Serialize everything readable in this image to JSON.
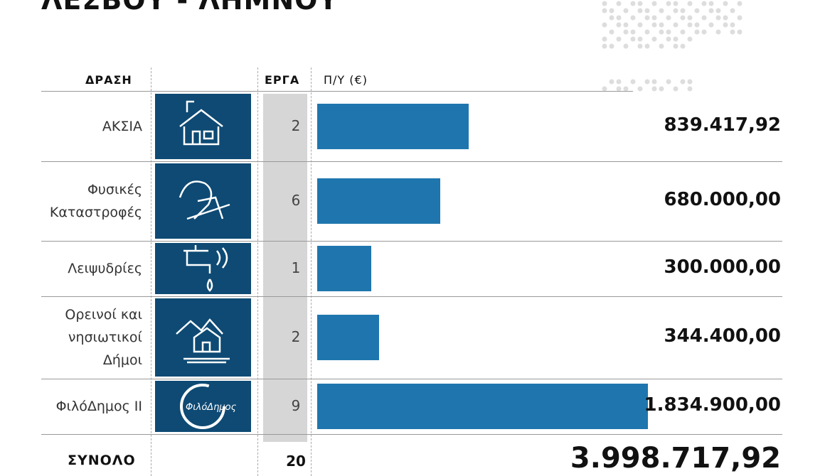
{
  "chart_data": {
    "type": "bar",
    "title": "ΛΕΣΒΟΥ - ΛΗΜΝΟΥ",
    "headers": [
      "ΔΡΑΣΗ",
      "ΕΡΓΑ",
      "Π/Υ (€)"
    ],
    "categories": [
      "ΑΚΣΙΑ",
      "Φυσικές\nΚαταστροφές",
      "Λειψυδρίες",
      "Ορεινοί και\nνησιωτικοί\nΔήμοι",
      "ΦιλόΔημος ΙΙ"
    ],
    "projects": [
      2,
      6,
      1,
      2,
      9
    ],
    "values": [
      839417.92,
      680000,
      300000,
      344400,
      1834900
    ],
    "value_labels": [
      "839.417,92",
      "680.000,00",
      "300.000,00",
      "344.400,00",
      "1.834.900,00"
    ],
    "color": "#1f76ae",
    "xlim": [
      0,
      1900000
    ],
    "logo_text": "ΦιλόΔημος",
    "total": {
      "label": "ΣΥΝΟΛΟ",
      "projects": 20,
      "value": 3998717.92,
      "value_label": "3.998.717,92"
    }
  }
}
